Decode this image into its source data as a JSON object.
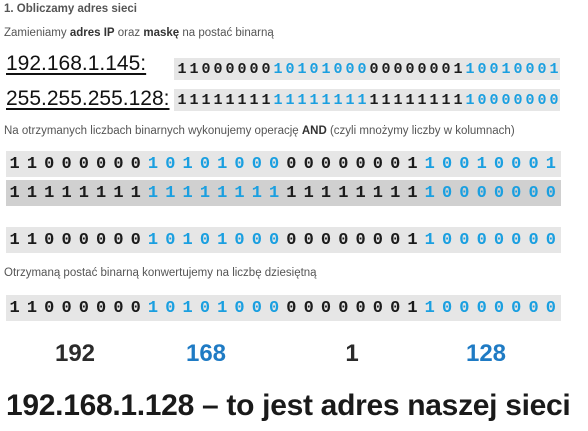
{
  "heading": "1. Obliczamy adres sieci",
  "intro": {
    "pre": "Zamieniamy ",
    "b1": "adres IP",
    "mid": " oraz ",
    "b2": "maskę",
    "post": " na postać binarną"
  },
  "ip_label": "192.168.1.145:",
  "mask_label": "255.255.255.128:",
  "ip_bits": [
    "11000000",
    "10101000",
    "00000001",
    "10010001"
  ],
  "mask_bits": [
    "11111111",
    "11111111",
    "11111111",
    "10000000"
  ],
  "and_line": {
    "pre": "Na otrzymanych liczbach binarnych wykonujemy operację ",
    "bold": "AND",
    "post": " (czyli mnożymy liczby w kolumnach)"
  },
  "result_bits": [
    "11000000",
    "10101000",
    "00000001",
    "10000000"
  ],
  "convert_line": "Otrzymaną postać binarną konwertujemy na liczbę dziesiętną",
  "decimals": [
    "192",
    "168",
    "1",
    "128"
  ],
  "final": "192.168.1.128 – to jest adres naszej sieci",
  "colors": {
    "dark": "#1b1b1b",
    "blue": "#1a9fe0",
    "row_light": "#e6e6e6",
    "row_dark": "#d0d0d0"
  }
}
